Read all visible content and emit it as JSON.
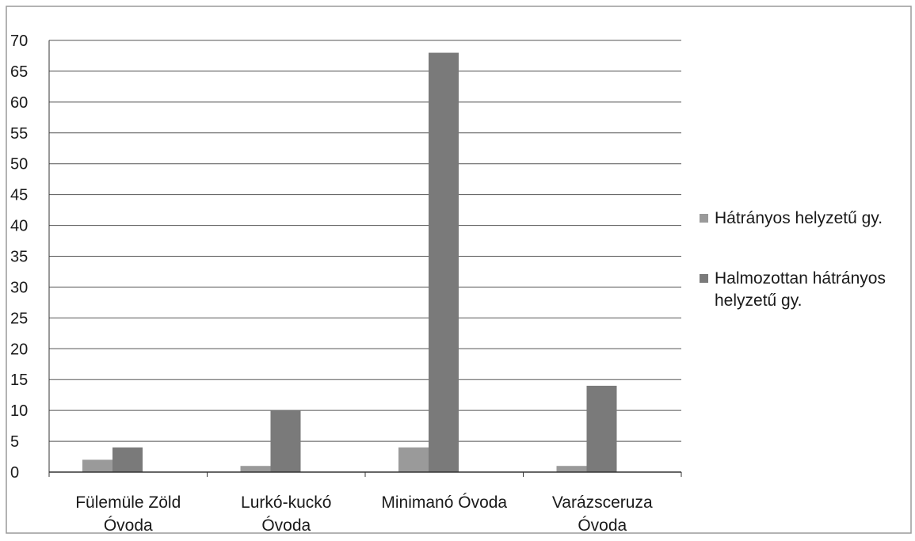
{
  "chart_data": {
    "type": "bar",
    "title": "",
    "xlabel": "",
    "ylabel": "",
    "categories": [
      [
        "Fülemüle Zöld",
        "Óvoda"
      ],
      [
        "Lurkó-kuckó",
        "Óvoda"
      ],
      [
        "Minimanó Óvoda"
      ],
      [
        "Varázsceruza",
        "Óvoda"
      ]
    ],
    "series": [
      {
        "name": "Hátrányos helyzetű gy.",
        "values": [
          2,
          1,
          4,
          1
        ],
        "color": "#9a9a9a"
      },
      {
        "name": "Halmozottan hátrányos helyzetű gy.",
        "values": [
          4,
          10,
          68,
          14
        ],
        "color": "#7a7a7a"
      }
    ],
    "ylim": [
      0,
      70
    ],
    "yticks": [
      "0",
      "5",
      "10",
      "15",
      "20",
      "25",
      "30",
      "35",
      "40",
      "45",
      "50",
      "55",
      "60",
      "65",
      "70"
    ],
    "grid": true,
    "legend_position": "right"
  }
}
